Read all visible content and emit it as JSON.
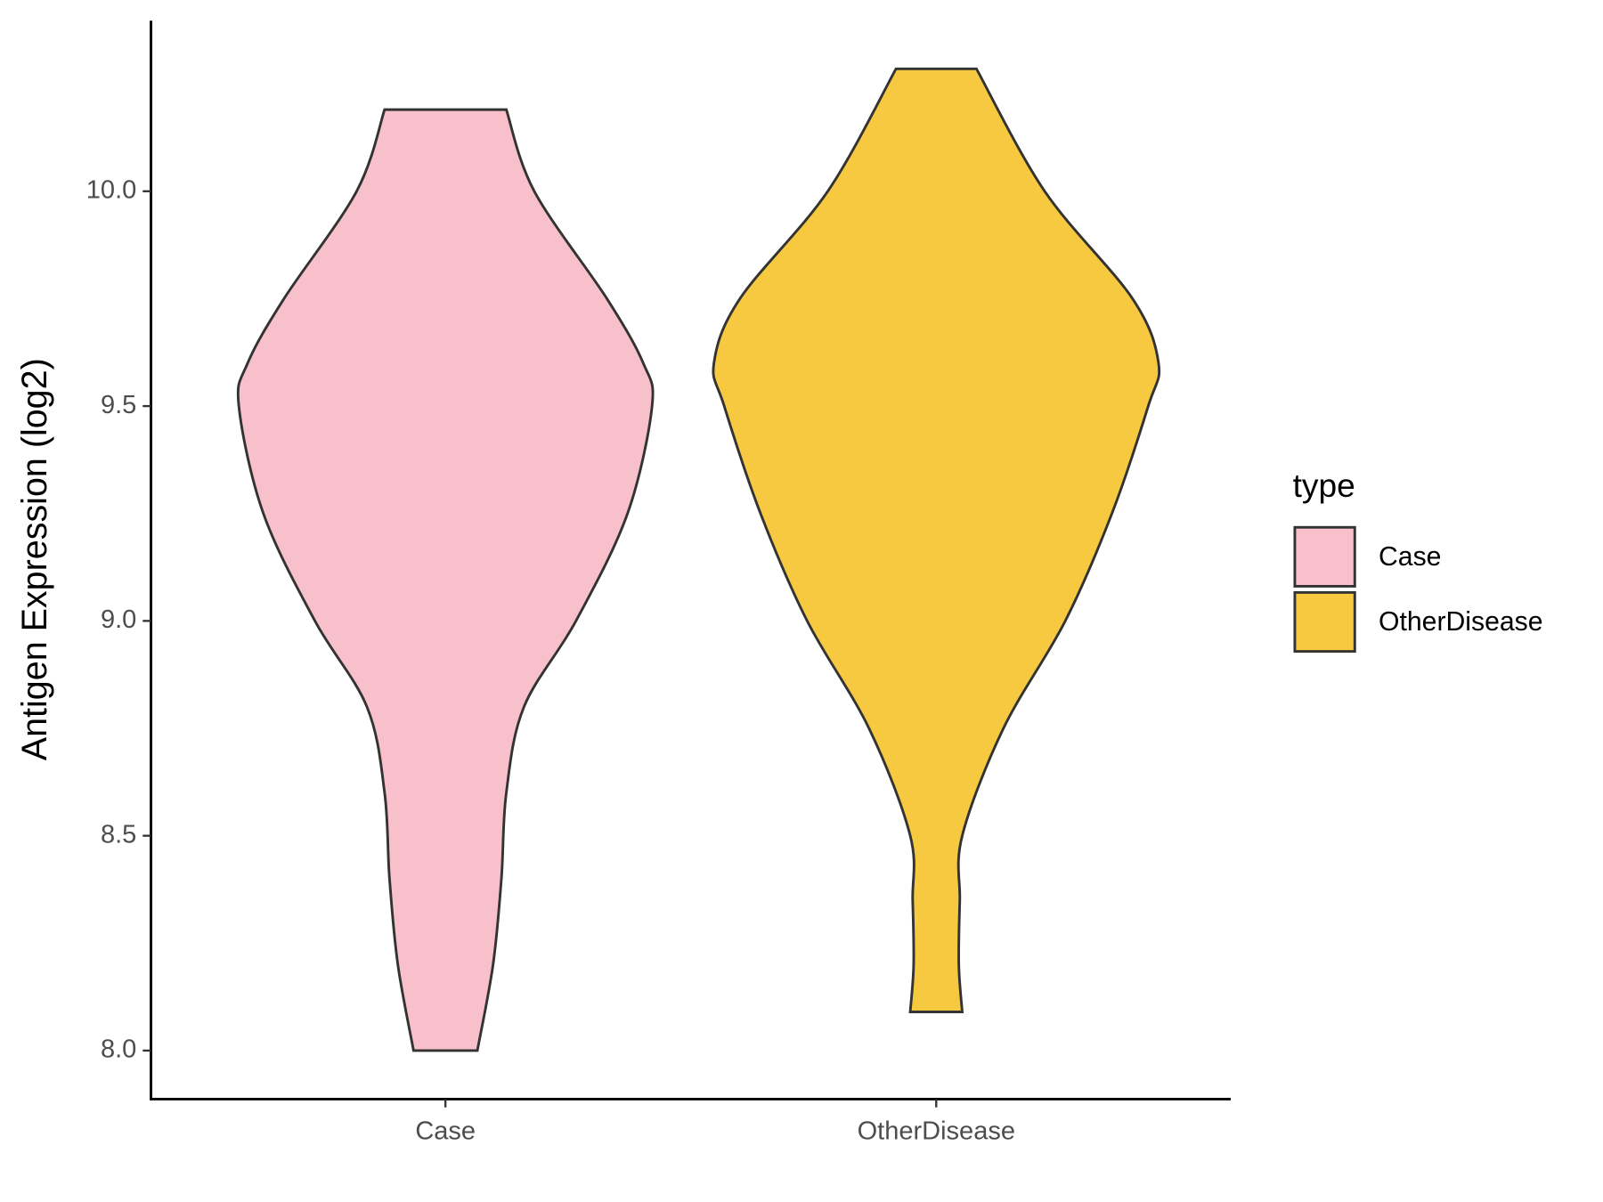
{
  "chart_data": {
    "type": "violin",
    "y_label": "Antigen Expression (log2)",
    "categories": [
      "Case",
      "OtherDisease"
    ],
    "legend_title": "type",
    "legend_position": "right",
    "ylim": [
      7.887,
      10.397
    ],
    "yticks": [
      {
        "value": 8.0,
        "label": "8.0"
      },
      8.5,
      {
        "value": 9.0,
        "label": "9.0"
      },
      9.5,
      {
        "value": 10.0,
        "label": "10.0"
      }
    ],
    "series": [
      {
        "name": "Case",
        "color": "#f7c0cb",
        "y": [
          8.0,
          8.2,
          8.4,
          8.6,
          8.8,
          9.0,
          9.25,
          9.5,
          9.6,
          9.75,
          10.0,
          10.19
        ],
        "widths": [
          0.065,
          0.097,
          0.114,
          0.124,
          0.16,
          0.266,
          0.371,
          0.421,
          0.403,
          0.329,
          0.181,
          0.124
        ]
      },
      {
        "name": "OtherDisease",
        "color": "#f6c940",
        "y": [
          8.09,
          8.2,
          8.35,
          8.5,
          8.75,
          9.0,
          9.25,
          9.5,
          9.6,
          9.75,
          10.0,
          10.285
        ],
        "widths": [
          0.053,
          0.046,
          0.048,
          0.053,
          0.137,
          0.263,
          0.358,
          0.432,
          0.453,
          0.4,
          0.221,
          0.082
        ]
      }
    ]
  }
}
